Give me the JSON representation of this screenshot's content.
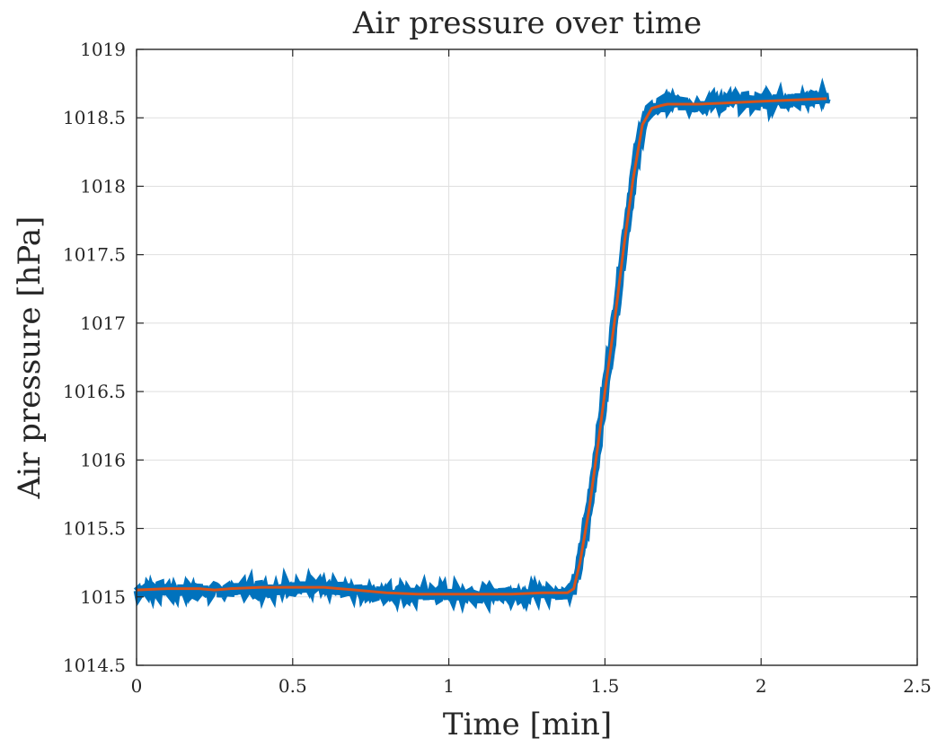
{
  "chart_data": {
    "type": "line",
    "title": "Air pressure over time",
    "xlabel": "Time [min]",
    "ylabel": "Air pressure [hPa]",
    "xlim": [
      0,
      2.5
    ],
    "ylim": [
      1014.5,
      1019
    ],
    "xticks": [
      0,
      0.5,
      1,
      1.5,
      2,
      2.5
    ],
    "xtick_labels": [
      "0",
      "0.5",
      "1",
      "1.5",
      "2",
      "2.5"
    ],
    "yticks": [
      1014.5,
      1015,
      1015.5,
      1016,
      1016.5,
      1017,
      1017.5,
      1018,
      1018.5,
      1019
    ],
    "ytick_labels": [
      "1014.5",
      "1015",
      "1015.5",
      "1016",
      "1016.5",
      "1017",
      "1017.5",
      "1018",
      "1018.5",
      "1019"
    ],
    "grid": true,
    "legend": "none",
    "series": [
      {
        "style": "raw noisy measurements",
        "color": "#0072BD",
        "points": [
          [
            0.0,
            1015.04
          ],
          [
            0.05,
            1015.05
          ],
          [
            0.1,
            1015.05
          ],
          [
            0.15,
            1015.05
          ],
          [
            0.2,
            1015.05
          ],
          [
            0.25,
            1015.04
          ],
          [
            0.3,
            1015.05
          ],
          [
            0.35,
            1015.06
          ],
          [
            0.4,
            1015.06
          ],
          [
            0.45,
            1015.06
          ],
          [
            0.5,
            1015.07
          ],
          [
            0.55,
            1015.07
          ],
          [
            0.6,
            1015.06
          ],
          [
            0.65,
            1015.06
          ],
          [
            0.7,
            1015.05
          ],
          [
            0.75,
            1015.04
          ],
          [
            0.8,
            1015.03
          ],
          [
            0.85,
            1015.02
          ],
          [
            0.9,
            1015.02
          ],
          [
            0.95,
            1015.02
          ],
          [
            1.0,
            1015.02
          ],
          [
            1.05,
            1015.02
          ],
          [
            1.1,
            1015.02
          ],
          [
            1.15,
            1015.02
          ],
          [
            1.2,
            1015.02
          ],
          [
            1.25,
            1015.02
          ],
          [
            1.3,
            1015.03
          ],
          [
            1.35,
            1015.03
          ],
          [
            1.38,
            1015.03
          ],
          [
            1.4,
            1015.06
          ],
          [
            1.42,
            1015.25
          ],
          [
            1.45,
            1015.65
          ],
          [
            1.48,
            1016.15
          ],
          [
            1.5,
            1016.5
          ],
          [
            1.53,
            1017.0
          ],
          [
            1.56,
            1017.55
          ],
          [
            1.59,
            1018.05
          ],
          [
            1.62,
            1018.45
          ],
          [
            1.65,
            1018.57
          ],
          [
            1.68,
            1018.59
          ],
          [
            1.7,
            1018.6
          ],
          [
            1.75,
            1018.6
          ],
          [
            1.8,
            1018.6
          ],
          [
            1.85,
            1018.61
          ],
          [
            1.9,
            1018.61
          ],
          [
            1.95,
            1018.62
          ],
          [
            2.0,
            1018.62
          ],
          [
            2.05,
            1018.63
          ],
          [
            2.1,
            1018.63
          ],
          [
            2.15,
            1018.64
          ],
          [
            2.2,
            1018.64
          ],
          [
            2.21,
            1018.64
          ]
        ]
      },
      {
        "style": "smoothed trend",
        "color": "#D95319",
        "points": [
          [
            0.0,
            1015.05
          ],
          [
            0.1,
            1015.06
          ],
          [
            0.2,
            1015.06
          ],
          [
            0.25,
            1015.05
          ],
          [
            0.3,
            1015.06
          ],
          [
            0.4,
            1015.07
          ],
          [
            0.5,
            1015.07
          ],
          [
            0.6,
            1015.07
          ],
          [
            0.7,
            1015.05
          ],
          [
            0.8,
            1015.03
          ],
          [
            0.9,
            1015.02
          ],
          [
            1.0,
            1015.02
          ],
          [
            1.1,
            1015.02
          ],
          [
            1.2,
            1015.02
          ],
          [
            1.3,
            1015.03
          ],
          [
            1.38,
            1015.03
          ],
          [
            1.4,
            1015.06
          ],
          [
            1.42,
            1015.25
          ],
          [
            1.45,
            1015.65
          ],
          [
            1.48,
            1016.15
          ],
          [
            1.5,
            1016.5
          ],
          [
            1.53,
            1017.0
          ],
          [
            1.56,
            1017.55
          ],
          [
            1.59,
            1018.05
          ],
          [
            1.62,
            1018.45
          ],
          [
            1.65,
            1018.57
          ],
          [
            1.68,
            1018.59
          ],
          [
            1.7,
            1018.6
          ],
          [
            1.8,
            1018.6
          ],
          [
            1.9,
            1018.61
          ],
          [
            2.0,
            1018.62
          ],
          [
            2.1,
            1018.63
          ],
          [
            2.21,
            1018.64
          ]
        ]
      }
    ]
  },
  "colors": {
    "raw_series": "#0072BD",
    "smooth_series": "#D95319",
    "grid": "#dfdfdf",
    "axes": "#262626"
  }
}
